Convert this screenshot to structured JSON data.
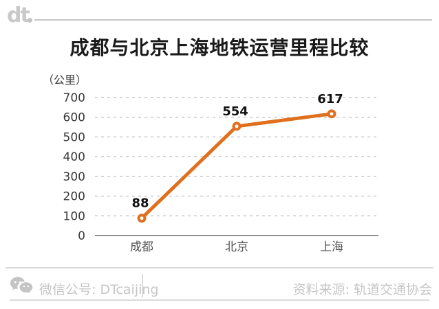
{
  "header": {
    "logo_text": "dt"
  },
  "title": "成都与北京上海地铁运营里程比较",
  "chart_data": {
    "type": "line",
    "title": "成都与北京上海地铁运营里程比较",
    "unit_label": "（公里）",
    "categories": [
      "成都",
      "北京",
      "上海"
    ],
    "values": [
      88,
      554,
      617
    ],
    "yticks": [
      0,
      100,
      200,
      300,
      400,
      500,
      600,
      700
    ],
    "ylim": [
      0,
      700
    ],
    "grid": "dashed-horizontal",
    "legend": "none",
    "line_color": "#E0701E",
    "marker": "open-circle"
  },
  "footer": {
    "wechat_label": "微信公号: DTcaijing",
    "source_label": "资料来源: 轨道交通协会"
  },
  "colors": {
    "accent_orange": "#E0701E",
    "grid_gray": "#ABABAB",
    "baseline_gray": "#8F8F8F",
    "muted_gray": "#C6C6C6",
    "title_dark": "#1A1A1A"
  }
}
